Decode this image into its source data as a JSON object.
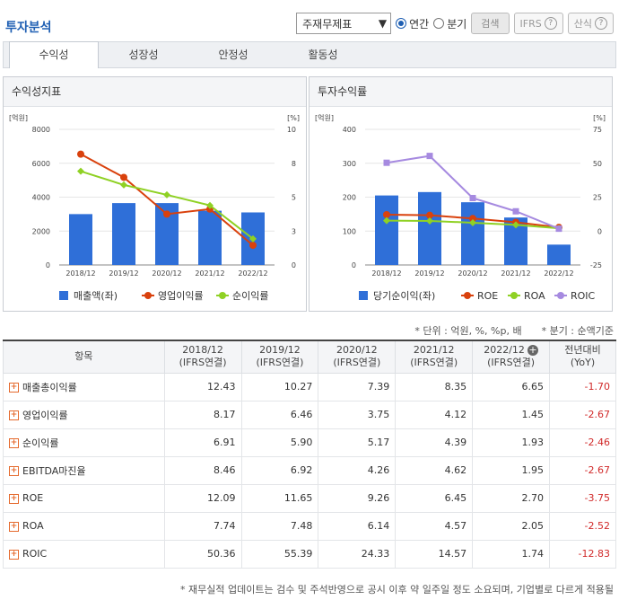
{
  "header": {
    "title": "투자분석",
    "select_value": "주재무제표",
    "radio_annual": "연간",
    "radio_quarter": "분기",
    "search_label": "검색",
    "ifrs_label": "IFRS",
    "formula_label": "산식",
    "question_mark": "?"
  },
  "tabs": [
    "수익성",
    "성장성",
    "안정성",
    "활동성"
  ],
  "panels": {
    "left_title": "수익성지표",
    "right_title": "투자수익률"
  },
  "chart_data": [
    {
      "type": "bar",
      "categories": [
        "2018/12",
        "2019/12",
        "2020/12",
        "2021/12",
        "2022/12"
      ],
      "left_axis_unit": "[억원]",
      "right_axis_unit": "[%]",
      "left_ticks": [
        "8000",
        "6000",
        "4000",
        "2000",
        "0"
      ],
      "right_ticks": [
        "10",
        "8",
        "5",
        "3",
        "0"
      ],
      "ylim_left": [
        0,
        8000
      ],
      "ylim_right": [
        0,
        10
      ],
      "series": [
        {
          "name": "매출액(좌)",
          "kind": "bar",
          "axis": "left",
          "color": "#2f6fd8",
          "values": [
            3000,
            3650,
            3650,
            3200,
            3100
          ]
        },
        {
          "name": "영업이익률",
          "kind": "line",
          "axis": "right",
          "color": "#d9410d",
          "values": [
            8.17,
            6.46,
            3.75,
            4.12,
            1.45
          ]
        },
        {
          "name": "순이익률",
          "kind": "line",
          "axis": "right",
          "color": "#8fd124",
          "values": [
            6.91,
            5.9,
            5.17,
            4.39,
            1.93
          ]
        }
      ]
    },
    {
      "type": "bar",
      "categories": [
        "2018/12",
        "2019/12",
        "2020/12",
        "2021/12",
        "2022/12"
      ],
      "left_axis_unit": "[억원]",
      "right_axis_unit": "[%]",
      "left_ticks": [
        "400",
        "300",
        "200",
        "100",
        "0"
      ],
      "right_ticks": [
        "75",
        "50",
        "25",
        "0",
        "-25"
      ],
      "ylim_left": [
        0,
        400
      ],
      "ylim_right": [
        -25,
        75
      ],
      "series": [
        {
          "name": "당기순이익(좌)",
          "kind": "bar",
          "axis": "left",
          "color": "#2f6fd8",
          "values": [
            205,
            215,
            185,
            140,
            60
          ]
        },
        {
          "name": "ROE",
          "kind": "line",
          "axis": "right",
          "color": "#d9410d",
          "values": [
            12.09,
            11.65,
            9.26,
            6.45,
            2.7
          ]
        },
        {
          "name": "ROA",
          "kind": "line",
          "axis": "right",
          "color": "#8fd124",
          "values": [
            7.74,
            7.48,
            6.14,
            4.57,
            2.05
          ]
        },
        {
          "name": "ROIC",
          "kind": "line",
          "axis": "right",
          "color": "#a68ae0",
          "values": [
            50.36,
            55.39,
            24.33,
            14.57,
            1.74
          ]
        }
      ]
    }
  ],
  "notes": {
    "unit": "* 단위 : 억원, %, %p, 배",
    "quarter": "* 분기 : 순액기준"
  },
  "table": {
    "col_item": "항목",
    "columns": [
      {
        "year": "2018/12",
        "basis": "(IFRS연결)"
      },
      {
        "year": "2019/12",
        "basis": "(IFRS연결)"
      },
      {
        "year": "2020/12",
        "basis": "(IFRS연결)"
      },
      {
        "year": "2021/12",
        "basis": "(IFRS연결)"
      },
      {
        "year": "2022/12",
        "basis": "(IFRS연결)"
      }
    ],
    "col_yoy": "전년대비",
    "col_yoy_sub": "(YoY)",
    "rows": [
      {
        "label": "매출총이익률",
        "values": [
          "12.43",
          "10.27",
          "7.39",
          "8.35",
          "6.65"
        ],
        "yoy": "-1.70"
      },
      {
        "label": "영업이익률",
        "values": [
          "8.17",
          "6.46",
          "3.75",
          "4.12",
          "1.45"
        ],
        "yoy": "-2.67"
      },
      {
        "label": "순이익률",
        "values": [
          "6.91",
          "5.90",
          "5.17",
          "4.39",
          "1.93"
        ],
        "yoy": "-2.46"
      },
      {
        "label": "EBITDA마진율",
        "values": [
          "8.46",
          "6.92",
          "4.26",
          "4.62",
          "1.95"
        ],
        "yoy": "-2.67"
      },
      {
        "label": "ROE",
        "values": [
          "12.09",
          "11.65",
          "9.26",
          "6.45",
          "2.70"
        ],
        "yoy": "-3.75"
      },
      {
        "label": "ROA",
        "values": [
          "7.74",
          "7.48",
          "6.14",
          "4.57",
          "2.05"
        ],
        "yoy": "-2.52"
      },
      {
        "label": "ROIC",
        "values": [
          "50.36",
          "55.39",
          "24.33",
          "14.57",
          "1.74"
        ],
        "yoy": "-12.83"
      }
    ]
  },
  "footer": "* 재무실적 업데이트는 검수 및 주석반영으로 공시 이후 약 일주일 정도 소요되며, 기업별로 다르게 적용될"
}
